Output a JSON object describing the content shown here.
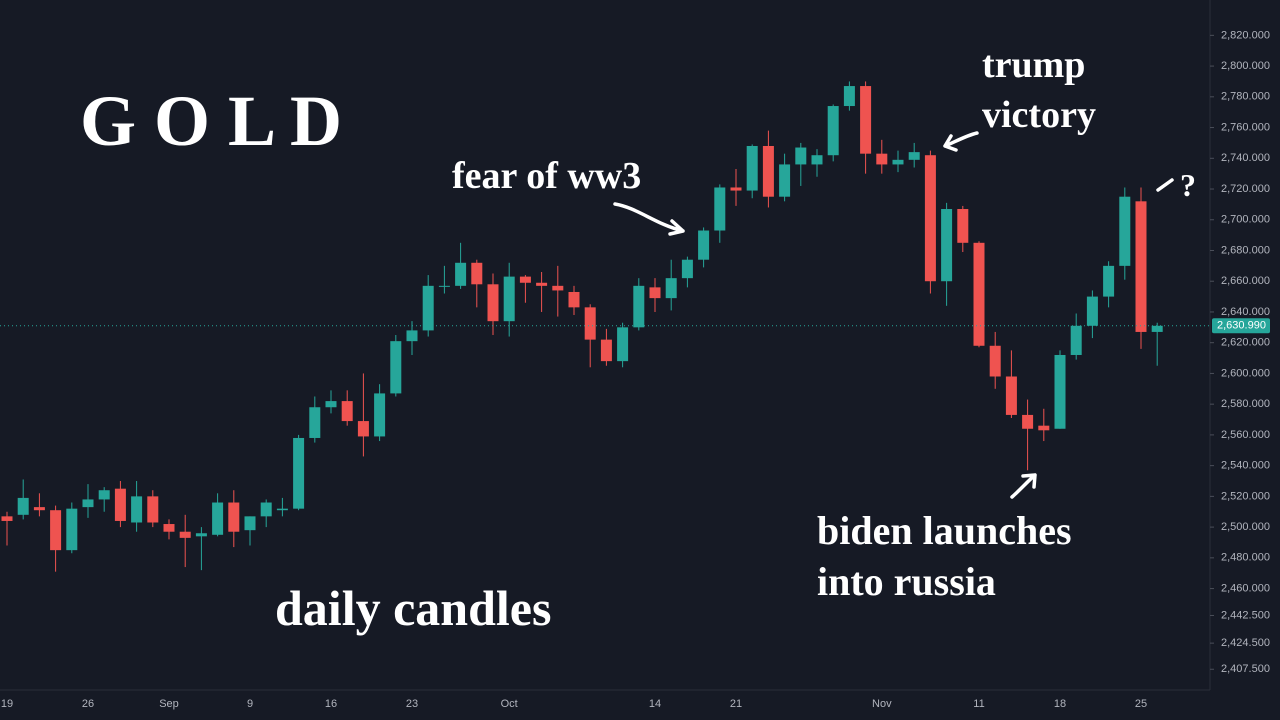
{
  "chart_data": {
    "type": "candlestick",
    "title": "G O L D",
    "subtitle": "daily candles",
    "categories": [
      "19",
      null,
      null,
      null,
      null,
      "26",
      null,
      null,
      null,
      null,
      "Sep",
      null,
      null,
      null,
      null,
      "9",
      null,
      null,
      null,
      null,
      "16",
      null,
      null,
      null,
      null,
      "23",
      null,
      null,
      null,
      null,
      null,
      "Oct",
      null,
      null,
      null,
      null,
      null,
      null,
      null,
      null,
      "14",
      null,
      null,
      null,
      null,
      "21",
      null,
      null,
      null,
      null,
      null,
      null,
      null,
      null,
      "Nov",
      null,
      null,
      null,
      null,
      null,
      "11",
      null,
      null,
      null,
      null,
      "18",
      null,
      null,
      null,
      null,
      "25",
      null
    ],
    "series": [
      {
        "up_color": "#26a69a",
        "down_color": "#ef5350",
        "open": [
          2507,
          2508,
          2513,
          2511,
          2485,
          2513,
          2518,
          2525,
          2503,
          2520,
          2502,
          2497,
          2494,
          2495,
          2516,
          2498,
          2507,
          2511,
          2512,
          2558,
          2578,
          2582,
          2569,
          2559,
          2587,
          2621,
          2628,
          2657,
          2657,
          2672,
          2658,
          2634,
          2663,
          2659,
          2657,
          2653,
          2643,
          2622,
          2608,
          2630,
          2656,
          2649,
          2662,
          2674,
          2693,
          2721,
          2719,
          2748,
          2715,
          2736,
          2736,
          2742,
          2774,
          2787,
          2743,
          2736,
          2739,
          2742,
          2660,
          2707,
          2685,
          2618,
          2598,
          2573,
          2566,
          2564,
          2612,
          2631,
          2650,
          2670,
          2712,
          2627
        ],
        "high": [
          2510,
          2531,
          2522,
          2514,
          2516,
          2528,
          2526,
          2530,
          2530,
          2524,
          2505,
          2508,
          2500,
          2522,
          2524,
          2507,
          2518,
          2519,
          2560,
          2585,
          2589,
          2589,
          2600,
          2593,
          2625,
          2634,
          2664,
          2670,
          2685,
          2674,
          2665,
          2672,
          2664,
          2666,
          2670,
          2657,
          2645,
          2629,
          2633,
          2662,
          2662,
          2674,
          2676,
          2695,
          2723,
          2733,
          2749,
          2758,
          2743,
          2750,
          2746,
          2775,
          2790,
          2790,
          2752,
          2745,
          2750,
          2745,
          2711,
          2709,
          2686,
          2627,
          2615,
          2583,
          2577,
          2615,
          2639,
          2654,
          2673,
          2721,
          2721,
          2633
        ],
        "low": [
          2488,
          2505,
          2507,
          2471,
          2483,
          2506,
          2510,
          2500,
          2497,
          2500,
          2492,
          2474,
          2472,
          2494,
          2487,
          2488,
          2500,
          2507,
          2511,
          2555,
          2574,
          2566,
          2546,
          2556,
          2585,
          2612,
          2624,
          2652,
          2655,
          2643,
          2625,
          2624,
          2646,
          2640,
          2637,
          2638,
          2604,
          2605,
          2604,
          2628,
          2640,
          2641,
          2656,
          2669,
          2685,
          2709,
          2714,
          2708,
          2712,
          2722,
          2728,
          2738,
          2771,
          2730,
          2730,
          2731,
          2734,
          2652,
          2644,
          2679,
          2617,
          2590,
          2571,
          2537,
          2556,
          2564,
          2609,
          2623,
          2643,
          2661,
          2616,
          2605
        ],
        "close": [
          2504,
          2519,
          2511,
          2485,
          2512,
          2518,
          2524,
          2504,
          2520,
          2503,
          2497,
          2493,
          2496,
          2516,
          2497,
          2507,
          2516,
          2512,
          2558,
          2578,
          2582,
          2569,
          2559,
          2587,
          2621,
          2628,
          2657,
          2657,
          2672,
          2658,
          2634,
          2663,
          2659,
          2657,
          2654,
          2643,
          2622,
          2608,
          2630,
          2657,
          2649,
          2662,
          2674,
          2693,
          2721,
          2719,
          2748,
          2715,
          2736,
          2747,
          2742,
          2774,
          2787,
          2743,
          2736,
          2739,
          2744,
          2660,
          2707,
          2685,
          2618,
          2598,
          2573,
          2564,
          2563,
          2612,
          2631,
          2650,
          2670,
          2715,
          2627,
          2631
        ]
      }
    ],
    "last_price": {
      "value": 2630.99,
      "label": "2,630.990"
    },
    "last_price_color": "#26a69a",
    "ylim": [
      2394,
      2843
    ],
    "yticks": [
      {
        "value": 2407.5,
        "label": "2,407.500"
      },
      {
        "value": 2424.5,
        "label": "2,424.500"
      },
      {
        "value": 2442.5,
        "label": "2,442.500"
      },
      {
        "value": 2460,
        "label": "2,460.000"
      },
      {
        "value": 2480,
        "label": "2,480.000"
      },
      {
        "value": 2500,
        "label": "2,500.000"
      },
      {
        "value": 2520,
        "label": "2,520.000"
      },
      {
        "value": 2540,
        "label": "2,540.000"
      },
      {
        "value": 2560,
        "label": "2,560.000"
      },
      {
        "value": 2580,
        "label": "2,580.000"
      },
      {
        "value": 2600,
        "label": "2,600.000"
      },
      {
        "value": 2620,
        "label": "2,620.000"
      },
      {
        "value": 2640,
        "label": "2,640.000"
      },
      {
        "value": 2660,
        "label": "2,660.000"
      },
      {
        "value": 2680,
        "label": "2,680.000"
      },
      {
        "value": 2700,
        "label": "2,700.000"
      },
      {
        "value": 2720,
        "label": "2,720.000"
      },
      {
        "value": 2740,
        "label": "2,740.000"
      },
      {
        "value": 2760,
        "label": "2,760.000"
      },
      {
        "value": 2780,
        "label": "2,780.000"
      },
      {
        "value": 2800,
        "label": "2,800.000"
      },
      {
        "value": 2820,
        "label": "2,820.000"
      }
    ],
    "grid": false,
    "annotations": [
      {
        "lines": [
          "fear of ww3"
        ]
      },
      {
        "lines": [
          "trump",
          "victory"
        ]
      },
      {
        "lines": [
          "biden launches",
          "into russia"
        ]
      },
      {
        "lines": [
          "?"
        ]
      }
    ]
  }
}
